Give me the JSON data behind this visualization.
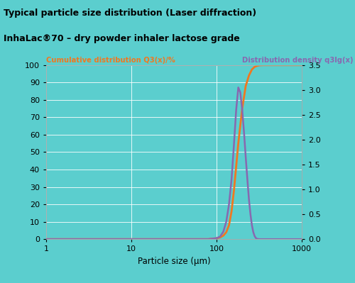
{
  "title1": "Typical particle size distribution (Laser diffraction)",
  "title2": "InhaLac®70 – dry powder inhaler lactose grade",
  "left_label": "Cumulative distribution Q3(x)/%",
  "right_label": "Distribution density q3lg(x)",
  "xlabel": "Particle size (µm)",
  "bg_color": "#5bcece",
  "plot_bg_color": "#5bcece",
  "orange_color": "#f07820",
  "purple_color": "#8868b0",
  "title_bg_color": "#7dd8d8",
  "left_yticks": [
    0,
    10,
    20,
    30,
    40,
    50,
    60,
    70,
    80,
    90,
    100
  ],
  "right_yticks": [
    0,
    0.5,
    1.0,
    1.5,
    2.0,
    2.5,
    3.0,
    3.5
  ],
  "ylim_left": [
    0,
    100
  ],
  "ylim_right": [
    0,
    3.5
  ],
  "xlim": [
    1,
    1000
  ],
  "cumulative_x": [
    1,
    5,
    10,
    20,
    50,
    80,
    100,
    110,
    120,
    130,
    140,
    150,
    160,
    180,
    200,
    220,
    240,
    260,
    280,
    300,
    320,
    350,
    400,
    500,
    700,
    1000
  ],
  "cumulative_y": [
    0,
    0,
    0,
    0,
    0,
    0,
    0.5,
    1.0,
    2.0,
    4.0,
    8.0,
    16.0,
    28.0,
    55.0,
    75.0,
    88.0,
    94.0,
    97.5,
    99.0,
    99.6,
    99.9,
    100.0,
    100.0,
    100.0,
    100.0,
    100.0
  ],
  "density_x": [
    1,
    5,
    10,
    20,
    50,
    80,
    100,
    110,
    120,
    130,
    140,
    150,
    160,
    170,
    180,
    190,
    200,
    210,
    220,
    230,
    240,
    250,
    260,
    270,
    280,
    290,
    300,
    320,
    350,
    400,
    500,
    700,
    1000
  ],
  "density_y": [
    0,
    0,
    0,
    0,
    0,
    0,
    0.02,
    0.05,
    0.15,
    0.35,
    0.7,
    1.2,
    1.9,
    2.6,
    3.05,
    2.95,
    2.6,
    2.15,
    1.65,
    1.2,
    0.8,
    0.5,
    0.28,
    0.14,
    0.06,
    0.02,
    0.005,
    0,
    0,
    0,
    0,
    0,
    0
  ]
}
